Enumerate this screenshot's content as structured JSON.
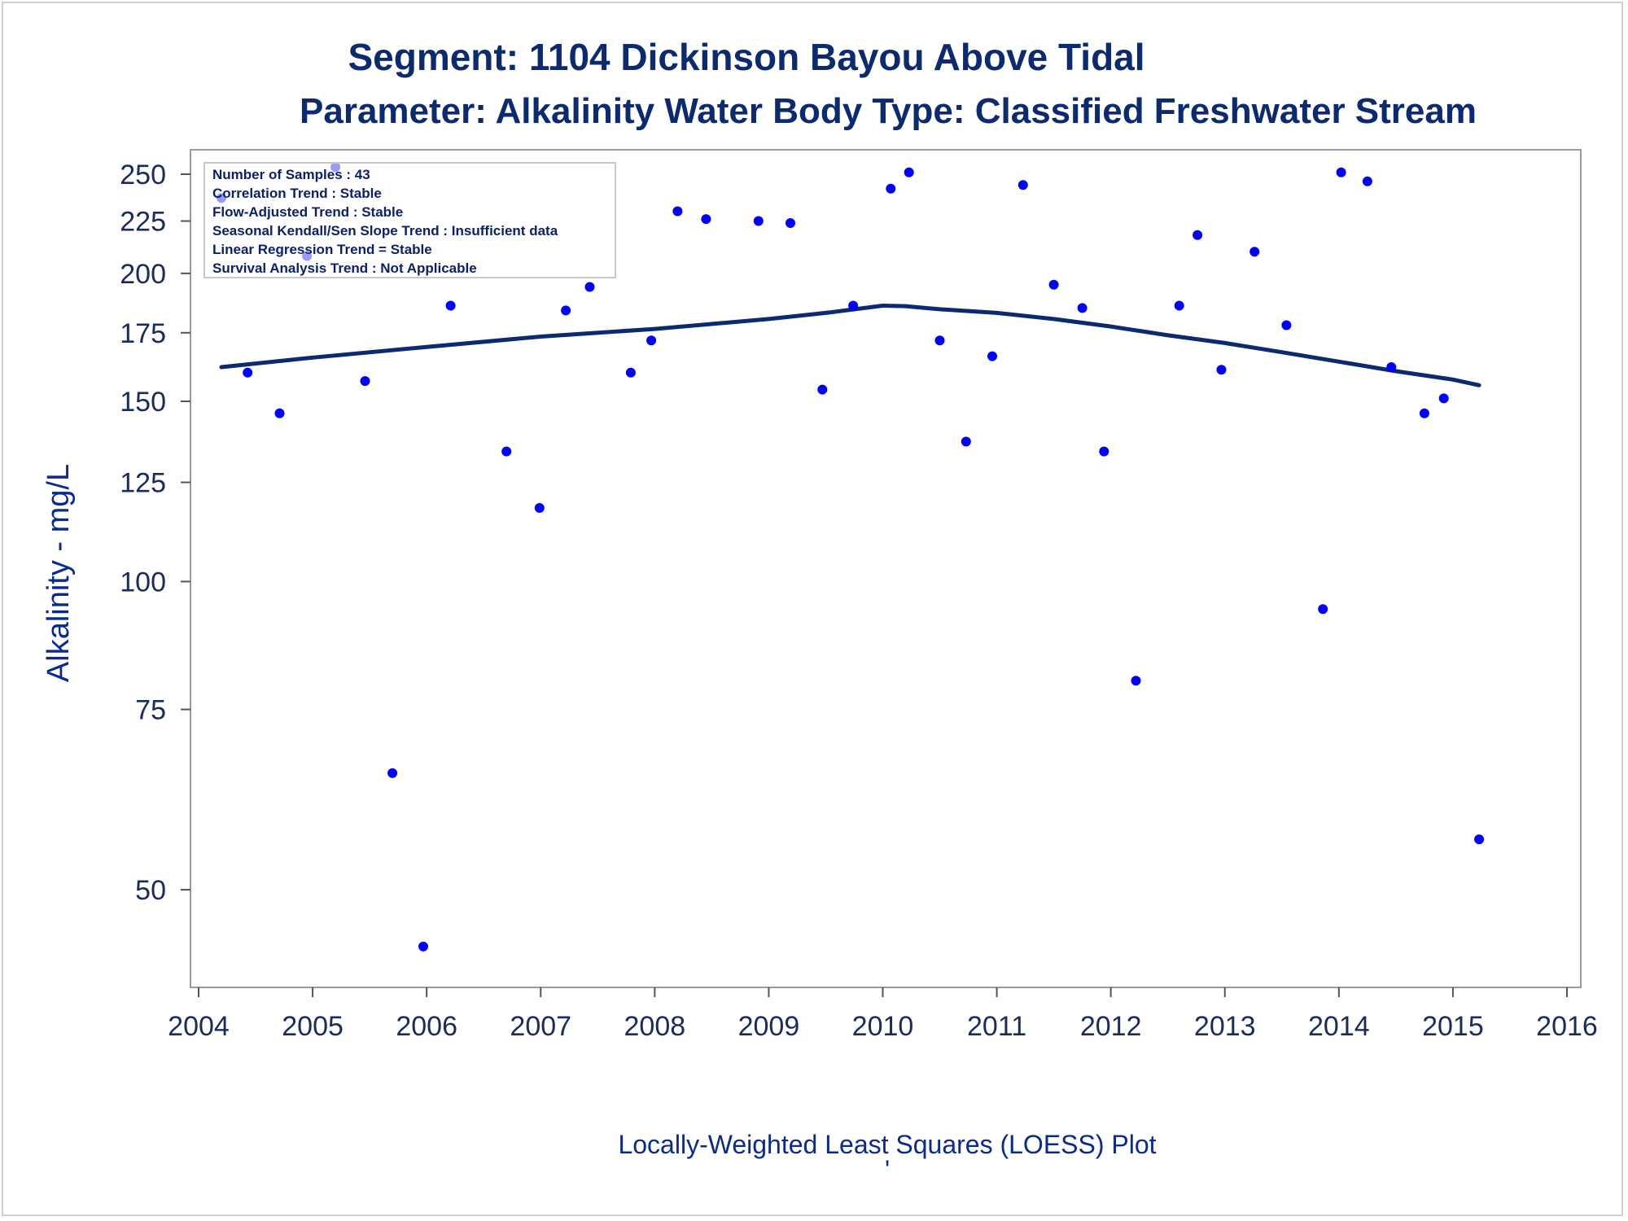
{
  "chart_data": {
    "type": "scatter",
    "title": "Segment: 1104  Dickinson Bayou Above Tidal",
    "subtitle": "Parameter: Alkalinity   Water Body Type: Classified Freshwater Stream",
    "xlabel": "",
    "ylabel": "Alkalinity - mg/L",
    "footnote": "Locally-Weighted Least Squares (LOESS) Plot",
    "footnote_mark": "'",
    "y_scale": "log",
    "xlim": [
      2004,
      2016
    ],
    "ylim": [
      43,
      255
    ],
    "x_ticks": [
      "2004",
      "2005",
      "2006",
      "2007",
      "2008",
      "2009",
      "2010",
      "2011",
      "2012",
      "2013",
      "2014",
      "2015",
      "2016"
    ],
    "y_ticks": [
      "50",
      "75",
      "100",
      "125",
      "150",
      "175",
      "200",
      "225",
      "250"
    ],
    "grid": false,
    "legend": "none",
    "stats_box": {
      "placement": "top-left",
      "lines": [
        "Number of Samples : 43",
        "Correlation Trend : Stable",
        "Flow-Adjusted Trend : Stable",
        "Seasonal Kendall/Sen Slope Trend : Insufficient data",
        "Linear Regression Trend = Stable",
        "Survival Analysis Trend : Not Applicable"
      ]
    },
    "colors": {
      "points": "#0000ff",
      "loess": "#0b2a6f",
      "text": "#0b2a8f"
    },
    "series": [
      {
        "type": "scatter",
        "points": [
          [
            2004.2,
            237
          ],
          [
            2004.43,
            160
          ],
          [
            2004.71,
            146
          ],
          [
            2004.95,
            208
          ],
          [
            2005.2,
            254
          ],
          [
            2005.46,
            157
          ],
          [
            2005.7,
            65
          ],
          [
            2005.97,
            44
          ],
          [
            2006.21,
            186
          ],
          [
            2006.7,
            134
          ],
          [
            2006.99,
            118
          ],
          [
            2007.22,
            184
          ],
          [
            2007.43,
            194
          ],
          [
            2007.79,
            160
          ],
          [
            2007.97,
            172
          ],
          [
            2008.2,
            230
          ],
          [
            2008.45,
            226
          ],
          [
            2008.91,
            225
          ],
          [
            2009.19,
            224
          ],
          [
            2009.47,
            154
          ],
          [
            2009.74,
            186
          ],
          [
            2010.07,
            242
          ],
          [
            2010.23,
            251
          ],
          [
            2010.5,
            172
          ],
          [
            2010.73,
            137
          ],
          [
            2010.96,
            166
          ],
          [
            2011.23,
            244
          ],
          [
            2011.5,
            195
          ],
          [
            2011.75,
            185
          ],
          [
            2011.94,
            134
          ],
          [
            2012.22,
            80
          ],
          [
            2012.6,
            186
          ],
          [
            2012.76,
            218
          ],
          [
            2012.97,
            161
          ],
          [
            2013.26,
            210
          ],
          [
            2013.54,
            178
          ],
          [
            2013.86,
            94
          ],
          [
            2014.02,
            251
          ],
          [
            2014.25,
            246
          ],
          [
            2014.46,
            162
          ],
          [
            2014.75,
            146
          ],
          [
            2014.92,
            151
          ],
          [
            2015.23,
            56
          ]
        ]
      },
      {
        "type": "line",
        "points": [
          [
            2004.2,
            162
          ],
          [
            2005.0,
            165.5
          ],
          [
            2006.0,
            169.5
          ],
          [
            2007.0,
            173.5
          ],
          [
            2008.0,
            176.5
          ],
          [
            2009.0,
            180.5
          ],
          [
            2009.5,
            183
          ],
          [
            2010.0,
            186
          ],
          [
            2010.2,
            185.8
          ],
          [
            2010.5,
            184.5
          ],
          [
            2011.0,
            183
          ],
          [
            2011.5,
            180.5
          ],
          [
            2012.0,
            177.5
          ],
          [
            2012.5,
            174
          ],
          [
            2013.0,
            171
          ],
          [
            2013.5,
            167.5
          ],
          [
            2014.0,
            164
          ],
          [
            2014.5,
            160.5
          ],
          [
            2015.0,
            157.5
          ],
          [
            2015.23,
            155.5
          ]
        ]
      }
    ]
  }
}
